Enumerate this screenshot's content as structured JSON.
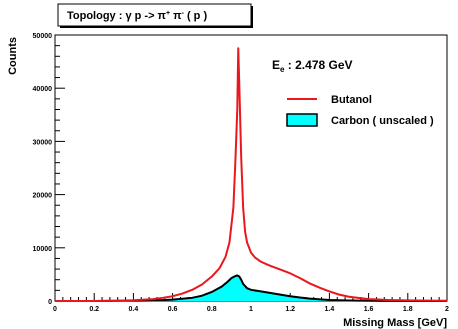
{
  "chart_data": {
    "type": "line",
    "title_parts": [
      "Topology : ",
      "γ",
      " p -> π",
      "+",
      " π",
      "-",
      " ( p )"
    ],
    "xlabel": "Missing Mass [GeV]",
    "ylabel": "Counts",
    "xlim": [
      0,
      2
    ],
    "ylim": [
      0,
      50000
    ],
    "x_ticks": [
      0,
      0.2,
      0.4,
      0.6,
      0.8,
      1,
      1.2,
      1.4,
      1.6,
      1.8,
      2
    ],
    "x_tick_labels": [
      "0",
      "0.2",
      "0.4",
      "0.6",
      "0.8",
      "1",
      "1.2",
      "1.4",
      "1.6",
      "1.8",
      "2"
    ],
    "y_ticks": [
      0,
      10000,
      20000,
      30000,
      40000,
      50000
    ],
    "y_tick_labels": [
      "0",
      "10000",
      "20000",
      "30000",
      "40000",
      "50000"
    ],
    "annotation_parts": [
      "E",
      "e",
      " : 2.478 GeV"
    ],
    "legend": {
      "position": "upper-right"
    },
    "series": [
      {
        "name": "Butanol",
        "color": "#e8181e",
        "fill": "none",
        "x": [
          0.0,
          0.05,
          0.1,
          0.2,
          0.3,
          0.4,
          0.5,
          0.55,
          0.6,
          0.65,
          0.7,
          0.75,
          0.8,
          0.84,
          0.87,
          0.89,
          0.91,
          0.92,
          0.93,
          0.935,
          0.94,
          0.95,
          0.96,
          0.97,
          0.98,
          1.0,
          1.02,
          1.05,
          1.08,
          1.1,
          1.15,
          1.2,
          1.25,
          1.3,
          1.35,
          1.4,
          1.45,
          1.5,
          1.6,
          1.7,
          1.8,
          1.9,
          2.0
        ],
        "y": [
          0,
          0,
          0,
          0,
          50,
          150,
          350,
          600,
          900,
          1400,
          2100,
          3100,
          4600,
          6200,
          8300,
          11000,
          17500,
          26000,
          36000,
          47500,
          41000,
          27000,
          17500,
          13000,
          11000,
          9100,
          8200,
          7400,
          6900,
          6600,
          5900,
          5200,
          4300,
          3300,
          2500,
          1800,
          1200,
          800,
          350,
          200,
          120,
          80,
          50
        ]
      },
      {
        "name": "Carbon ( unscaled )",
        "color": "#000000",
        "fill": "#00ffff",
        "x": [
          0.0,
          0.2,
          0.4,
          0.5,
          0.6,
          0.7,
          0.75,
          0.8,
          0.85,
          0.88,
          0.9,
          0.92,
          0.93,
          0.94,
          0.95,
          0.96,
          0.98,
          1.0,
          1.05,
          1.1,
          1.15,
          1.2,
          1.25,
          1.3,
          1.4,
          1.5,
          1.6,
          1.8,
          2.0
        ],
        "y": [
          0,
          0,
          50,
          100,
          250,
          600,
          1000,
          1700,
          2700,
          3600,
          4300,
          4700,
          4800,
          4600,
          4000,
          3200,
          2400,
          2100,
          1800,
          1500,
          1200,
          900,
          650,
          450,
          200,
          100,
          50,
          0,
          0
        ]
      }
    ]
  }
}
